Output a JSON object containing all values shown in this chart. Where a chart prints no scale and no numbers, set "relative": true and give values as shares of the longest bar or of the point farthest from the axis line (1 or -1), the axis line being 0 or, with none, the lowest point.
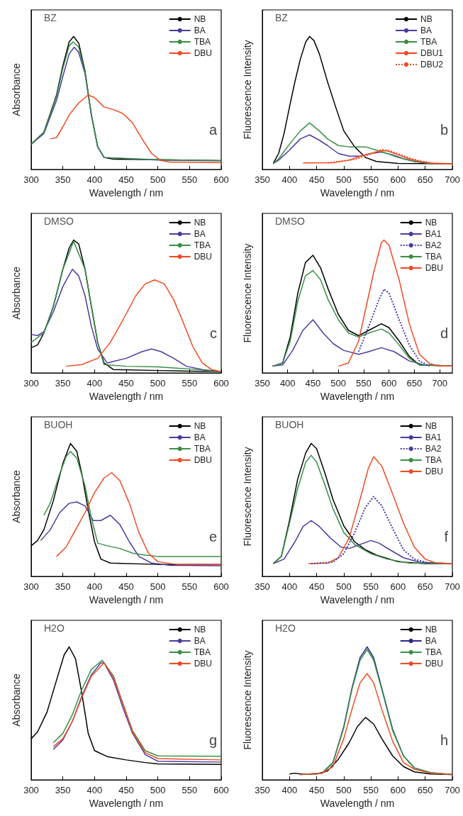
{
  "chart_data": [
    {
      "type": "line",
      "relative": true,
      "xlabel": "Wavelength / nm",
      "ylabel": "Absorbance",
      "xlim": [
        300,
        600
      ],
      "xticks": [
        300,
        350,
        400,
        450,
        500,
        550,
        600
      ],
      "grid": false,
      "legend": "top right",
      "marker": "none",
      "annotations": [
        "BZ",
        "a"
      ],
      "series": [
        {
          "name": "NB",
          "color": "#000000",
          "x": [
            300,
            320,
            340,
            350,
            360,
            367,
            375,
            385,
            395,
            405,
            415,
            430,
            500,
            600
          ],
          "values": [
            0.19,
            0.28,
            0.56,
            0.78,
            0.96,
            1.0,
            0.95,
            0.74,
            0.41,
            0.17,
            0.09,
            0.077,
            0.073,
            0.066
          ]
        },
        {
          "name": "BA",
          "color": "#4b3c9e",
          "x": [
            300,
            320,
            340,
            350,
            360,
            368,
            375,
            385,
            395,
            405,
            415,
            500,
            600
          ],
          "values": [
            0.19,
            0.27,
            0.52,
            0.7,
            0.87,
            0.92,
            0.88,
            0.72,
            0.41,
            0.17,
            0.09,
            0.07,
            0.065
          ]
        },
        {
          "name": "TBA",
          "color": "#3a8f45",
          "x": [
            300,
            320,
            340,
            350,
            360,
            366,
            375,
            385,
            395,
            405,
            415,
            500,
            600
          ],
          "values": [
            0.19,
            0.28,
            0.55,
            0.76,
            0.93,
            0.96,
            0.92,
            0.73,
            0.41,
            0.17,
            0.09,
            0.073,
            0.068
          ]
        },
        {
          "name": "DBU",
          "color": "#f04a22",
          "x": [
            330,
            340,
            350,
            360,
            375,
            390,
            400,
            415,
            430,
            445,
            460,
            475,
            490,
            505,
            520,
            600
          ],
          "values": [
            0.23,
            0.24,
            0.32,
            0.41,
            0.5,
            0.56,
            0.54,
            0.47,
            0.45,
            0.42,
            0.35,
            0.23,
            0.12,
            0.066,
            0.055,
            0.051
          ]
        }
      ]
    },
    {
      "type": "line",
      "relative": true,
      "xlabel": "Wavelength / nm",
      "ylabel": "Fluorescence Intensity",
      "xlim": [
        350,
        700
      ],
      "xticks": [
        350,
        400,
        450,
        500,
        550,
        600,
        650,
        700
      ],
      "grid": false,
      "legend": "top right",
      "marker": "none",
      "annotations": [
        "BZ",
        "b"
      ],
      "series": [
        {
          "name": "NB",
          "color": "#000000",
          "x": [
            370,
            380,
            390,
            400,
            410,
            420,
            430,
            437,
            445,
            455,
            470,
            485,
            500,
            520,
            540,
            560,
            600,
            700
          ],
          "values": [
            0.045,
            0.12,
            0.27,
            0.47,
            0.66,
            0.83,
            0.96,
            1.0,
            0.97,
            0.87,
            0.66,
            0.47,
            0.29,
            0.17,
            0.09,
            0.06,
            0.045,
            0.043
          ]
        },
        {
          "name": "BA",
          "color": "#4b3c9e",
          "x": [
            370,
            380,
            400,
            420,
            437,
            455,
            470,
            490,
            510,
            530,
            550,
            570,
            590,
            610,
            630,
            660,
            700
          ],
          "values": [
            0.045,
            0.07,
            0.145,
            0.23,
            0.26,
            0.22,
            0.18,
            0.12,
            0.1,
            0.1,
            0.12,
            0.13,
            0.11,
            0.08,
            0.06,
            0.045,
            0.043
          ]
        },
        {
          "name": "TBA",
          "color": "#3a8f45",
          "x": [
            370,
            380,
            400,
            420,
            437,
            455,
            470,
            490,
            510,
            540,
            560,
            580,
            600,
            630,
            660,
            700
          ],
          "values": [
            0.045,
            0.08,
            0.19,
            0.29,
            0.35,
            0.29,
            0.23,
            0.18,
            0.17,
            0.17,
            0.145,
            0.12,
            0.09,
            0.06,
            0.045,
            0.043
          ]
        },
        {
          "name": "DBU1",
          "color": "#f04a22",
          "x": [
            425,
            450,
            480,
            510,
            530,
            550,
            570,
            580,
            600,
            620,
            640,
            660,
            700
          ],
          "values": [
            0.049,
            0.049,
            0.05,
            0.07,
            0.1,
            0.12,
            0.14,
            0.14,
            0.11,
            0.08,
            0.06,
            0.047,
            0.043
          ]
        },
        {
          "name": "DBU2",
          "color": "#f04a22",
          "line_style": "dotted",
          "x": [
            470,
            520,
            545,
            570,
            585,
            605,
            625,
            645,
            670,
            700
          ],
          "values": [
            0.049,
            0.075,
            0.11,
            0.15,
            0.14,
            0.11,
            0.08,
            0.06,
            0.045,
            0.043
          ]
        }
      ]
    },
    {
      "type": "line",
      "relative": true,
      "xlabel": "Wavelength / nm",
      "ylabel": "Absorbance",
      "xlim": [
        300,
        600
      ],
      "xticks": [
        300,
        350,
        400,
        450,
        500,
        550,
        600
      ],
      "grid": false,
      "legend": "top right",
      "marker": "none",
      "annotations": [
        "DMSO",
        "c"
      ],
      "series": [
        {
          "name": "NB",
          "color": "#000000",
          "x": [
            300,
            310,
            320,
            335,
            350,
            360,
            367,
            375,
            385,
            395,
            405,
            415,
            430,
            500,
            600
          ],
          "values": [
            0.19,
            0.21,
            0.3,
            0.5,
            0.78,
            0.94,
            1.0,
            0.97,
            0.78,
            0.5,
            0.23,
            0.075,
            0.025,
            0.018,
            0.01
          ]
        },
        {
          "name": "BA",
          "color": "#4b3c9e",
          "x": [
            300,
            310,
            320,
            335,
            350,
            365,
            375,
            385,
            395,
            405,
            420,
            450,
            475,
            490,
            505,
            525,
            545,
            570,
            600
          ],
          "values": [
            0.29,
            0.28,
            0.31,
            0.46,
            0.65,
            0.78,
            0.73,
            0.58,
            0.35,
            0.18,
            0.075,
            0.11,
            0.16,
            0.18,
            0.16,
            0.11,
            0.05,
            0.025,
            0.01
          ]
        },
        {
          "name": "TBA",
          "color": "#3a8f45",
          "x": [
            300,
            320,
            335,
            350,
            367,
            385,
            395,
            405,
            415,
            450,
            500,
            550,
            600
          ],
          "values": [
            0.23,
            0.3,
            0.5,
            0.78,
            0.99,
            0.78,
            0.5,
            0.23,
            0.063,
            0.05,
            0.045,
            0.03,
            0.01
          ]
        },
        {
          "name": "DBU",
          "color": "#f04a22",
          "x": [
            355,
            380,
            405,
            425,
            445,
            465,
            480,
            495,
            510,
            525,
            540,
            555,
            570,
            585,
            600
          ],
          "values": [
            0.05,
            0.063,
            0.11,
            0.23,
            0.4,
            0.58,
            0.67,
            0.7,
            0.67,
            0.55,
            0.38,
            0.2,
            0.075,
            0.025,
            0.01
          ]
        }
      ]
    },
    {
      "type": "line",
      "relative": true,
      "xlabel": "Wavelength / nm",
      "ylabel": "Fluorescence Intensity",
      "xlim": [
        350,
        725
      ],
      "xticks": [
        350,
        400,
        450,
        500,
        550,
        600,
        650,
        700
      ],
      "grid": false,
      "legend": "top right",
      "marker": "none",
      "annotations": [
        "DMSO",
        "d"
      ],
      "series": [
        {
          "name": "NB",
          "color": "#000000",
          "x": [
            370,
            390,
            405,
            420,
            435,
            450,
            465,
            480,
            500,
            520,
            540,
            560,
            585,
            600,
            620,
            640,
            660,
            725
          ],
          "values": [
            0.05,
            0.075,
            0.27,
            0.6,
            0.83,
            0.885,
            0.79,
            0.63,
            0.44,
            0.32,
            0.28,
            0.32,
            0.37,
            0.34,
            0.24,
            0.125,
            0.06,
            0.052
          ]
        },
        {
          "name": "BA1",
          "color": "#4b3c9e",
          "x": [
            370,
            390,
            410,
            430,
            450,
            470,
            490,
            510,
            540,
            560,
            585,
            610,
            640,
            670,
            725
          ],
          "values": [
            0.052,
            0.06,
            0.17,
            0.32,
            0.4,
            0.3,
            0.22,
            0.17,
            0.14,
            0.16,
            0.19,
            0.16,
            0.09,
            0.06,
            0.052
          ]
        },
        {
          "name": "BA2",
          "color": "#4b3c9e",
          "line_style": "dotted",
          "x": [
            540,
            560,
            580,
            590,
            600,
            620,
            640,
            660,
            680
          ],
          "values": [
            0.16,
            0.35,
            0.55,
            0.63,
            0.6,
            0.4,
            0.21,
            0.09,
            0.052
          ]
        },
        {
          "name": "TBA",
          "color": "#3a8f45",
          "x": [
            370,
            390,
            405,
            420,
            435,
            450,
            465,
            480,
            500,
            520,
            540,
            560,
            585,
            600,
            620,
            640,
            660,
            725
          ],
          "values": [
            0.05,
            0.075,
            0.24,
            0.54,
            0.73,
            0.77,
            0.7,
            0.55,
            0.4,
            0.3,
            0.27,
            0.3,
            0.33,
            0.3,
            0.21,
            0.11,
            0.06,
            0.052
          ]
        },
        {
          "name": "DBU",
          "color": "#f04a22",
          "x": [
            500,
            520,
            540,
            555,
            570,
            585,
            590,
            600,
            620,
            640,
            660,
            680,
            700,
            725
          ],
          "values": [
            0.05,
            0.075,
            0.24,
            0.5,
            0.76,
            0.98,
            1.0,
            0.96,
            0.7,
            0.37,
            0.14,
            0.07,
            0.052,
            0.052
          ]
        }
      ]
    },
    {
      "type": "line",
      "relative": true,
      "xlabel": "Wavelength / nm",
      "ylabel": "Absorbance",
      "xlim": [
        300,
        600
      ],
      "xticks": [
        300,
        350,
        400,
        450,
        500,
        550,
        600
      ],
      "grid": false,
      "legend": "top right",
      "marker": "none",
      "annotations": [
        "BUOH",
        "e"
      ],
      "series": [
        {
          "name": "NB",
          "color": "#000000",
          "x": [
            300,
            310,
            320,
            335,
            350,
            362,
            372,
            380,
            390,
            400,
            410,
            425,
            500,
            600
          ],
          "values": [
            0.23,
            0.27,
            0.35,
            0.57,
            0.85,
            1.0,
            0.94,
            0.77,
            0.5,
            0.26,
            0.13,
            0.1,
            0.09,
            0.09
          ]
        },
        {
          "name": "BA",
          "color": "#4b3c9e",
          "x": [
            315,
            330,
            345,
            360,
            372,
            385,
            398,
            410,
            425,
            440,
            455,
            470,
            490,
            520,
            600
          ],
          "values": [
            0.27,
            0.35,
            0.48,
            0.55,
            0.56,
            0.53,
            0.42,
            0.42,
            0.46,
            0.39,
            0.26,
            0.15,
            0.1,
            0.083,
            0.08
          ]
        },
        {
          "name": "TBA",
          "color": "#3a8f45",
          "x": [
            320,
            330,
            345,
            355,
            362,
            372,
            385,
            395,
            405,
            420,
            440,
            460,
            480,
            500,
            600
          ],
          "values": [
            0.46,
            0.55,
            0.77,
            0.9,
            0.94,
            0.89,
            0.68,
            0.44,
            0.25,
            0.23,
            0.21,
            0.175,
            0.16,
            0.15,
            0.15
          ]
        },
        {
          "name": "DBU",
          "color": "#f04a22",
          "x": [
            340,
            355,
            370,
            385,
            400,
            415,
            427,
            440,
            455,
            470,
            485,
            500,
            530,
            600
          ],
          "values": [
            0.15,
            0.22,
            0.35,
            0.48,
            0.63,
            0.74,
            0.78,
            0.72,
            0.55,
            0.33,
            0.175,
            0.11,
            0.09,
            0.09
          ]
        }
      ]
    },
    {
      "type": "line",
      "relative": true,
      "xlabel": "Wavelength / nm",
      "ylabel": "Fluorescence Intensity",
      "xlim": [
        350,
        700
      ],
      "xticks": [
        350,
        400,
        450,
        500,
        550,
        600,
        650,
        700
      ],
      "grid": false,
      "legend": "top right",
      "marker": "none",
      "annotations": [
        "BUOH",
        "f"
      ],
      "series": [
        {
          "name": "NB",
          "color": "#000000",
          "x": [
            370,
            385,
            400,
            415,
            430,
            440,
            450,
            465,
            480,
            500,
            520,
            540,
            560,
            600,
            650,
            700
          ],
          "values": [
            0.096,
            0.15,
            0.42,
            0.73,
            0.93,
            1.0,
            0.96,
            0.78,
            0.58,
            0.38,
            0.26,
            0.2,
            0.16,
            0.11,
            0.096,
            0.096
          ]
        },
        {
          "name": "BA1",
          "color": "#4b3c9e",
          "x": [
            370,
            390,
            410,
            425,
            440,
            455,
            475,
            495,
            510,
            530,
            550,
            565,
            585,
            610,
            640,
            700
          ],
          "values": [
            0.096,
            0.13,
            0.26,
            0.375,
            0.42,
            0.375,
            0.29,
            0.22,
            0.21,
            0.24,
            0.27,
            0.25,
            0.2,
            0.14,
            0.107,
            0.096
          ]
        },
        {
          "name": "BA2",
          "color": "#4b3c9e",
          "line_style": "dotted",
          "x": [
            440,
            480,
            500,
            520,
            540,
            555,
            570,
            590,
            610,
            630,
            660
          ],
          "values": [
            0.096,
            0.107,
            0.17,
            0.33,
            0.52,
            0.6,
            0.53,
            0.36,
            0.2,
            0.13,
            0.096
          ]
        },
        {
          "name": "TBA",
          "color": "#3a8f45",
          "x": [
            370,
            385,
            400,
            415,
            430,
            440,
            450,
            465,
            480,
            500,
            520,
            550,
            580,
            620,
            700
          ],
          "values": [
            0.096,
            0.15,
            0.4,
            0.66,
            0.86,
            0.91,
            0.86,
            0.69,
            0.51,
            0.33,
            0.24,
            0.17,
            0.13,
            0.1,
            0.096
          ]
        },
        {
          "name": "DBU",
          "color": "#f04a22",
          "x": [
            435,
            470,
            490,
            510,
            530,
            545,
            555,
            570,
            590,
            610,
            630,
            650,
            670,
            700
          ],
          "values": [
            0.096,
            0.1,
            0.14,
            0.29,
            0.58,
            0.81,
            0.9,
            0.83,
            0.62,
            0.4,
            0.22,
            0.13,
            0.1,
            0.096
          ]
        }
      ]
    },
    {
      "type": "line",
      "relative": true,
      "xlabel": "Wavelength / nm",
      "ylabel": "Absorbance",
      "xlim": [
        300,
        600
      ],
      "xticks": [
        300,
        350,
        400,
        450,
        500,
        550,
        600
      ],
      "grid": false,
      "legend": "top right",
      "marker": "none",
      "annotations": [
        "H2O",
        "g"
      ],
      "series": [
        {
          "name": "NB",
          "color": "#000000",
          "x": [
            300,
            310,
            325,
            340,
            352,
            360,
            370,
            380,
            390,
            400,
            420,
            450,
            480,
            500,
            600
          ],
          "values": [
            0.31,
            0.36,
            0.51,
            0.75,
            0.94,
            1.0,
            0.91,
            0.65,
            0.35,
            0.22,
            0.175,
            0.15,
            0.13,
            0.12,
            0.116
          ]
        },
        {
          "name": "BA",
          "color": "#4b3c9e",
          "x": [
            335,
            350,
            365,
            380,
            395,
            410,
            415,
            430,
            445,
            460,
            480,
            500,
            600
          ],
          "values": [
            0.23,
            0.3,
            0.44,
            0.63,
            0.79,
            0.88,
            0.88,
            0.75,
            0.54,
            0.35,
            0.19,
            0.14,
            0.134
          ]
        },
        {
          "name": "TBA",
          "color": "#3a8f45",
          "x": [
            335,
            350,
            365,
            380,
            395,
            412,
            430,
            445,
            460,
            480,
            500,
            600
          ],
          "values": [
            0.28,
            0.35,
            0.49,
            0.68,
            0.83,
            0.9,
            0.78,
            0.57,
            0.37,
            0.22,
            0.18,
            0.177
          ]
        },
        {
          "name": "DBU",
          "color": "#f04a22",
          "x": [
            335,
            350,
            365,
            380,
            395,
            415,
            430,
            445,
            460,
            480,
            500,
            600
          ],
          "values": [
            0.25,
            0.31,
            0.44,
            0.62,
            0.78,
            0.88,
            0.77,
            0.57,
            0.36,
            0.205,
            0.16,
            0.15
          ]
        }
      ]
    },
    {
      "type": "line",
      "relative": true,
      "xlabel": "Wavelength / nm",
      "ylabel": "Fluorescence Intensity",
      "xlim": [
        350,
        700
      ],
      "xticks": [
        350,
        400,
        450,
        500,
        550,
        600,
        650,
        700
      ],
      "grid": false,
      "legend": "top right",
      "marker": "none",
      "annotations": [
        "H2O",
        "h"
      ],
      "series": [
        {
          "name": "NB",
          "color": "#000000",
          "x": [
            400,
            410,
            420,
            450,
            470,
            490,
            510,
            525,
            540,
            555,
            570,
            590,
            610,
            630,
            660,
            700
          ],
          "values": [
            0.044,
            0.05,
            0.044,
            0.044,
            0.067,
            0.155,
            0.28,
            0.4,
            0.47,
            0.42,
            0.31,
            0.18,
            0.1,
            0.06,
            0.044,
            0.04
          ]
        },
        {
          "name": "BA",
          "color": "#2a2a8f",
          "x": [
            420,
            460,
            480,
            500,
            515,
            530,
            543,
            555,
            570,
            590,
            610,
            630,
            660,
            700
          ],
          "values": [
            0.04,
            0.05,
            0.13,
            0.4,
            0.69,
            0.92,
            1.0,
            0.92,
            0.69,
            0.38,
            0.18,
            0.09,
            0.053,
            0.04
          ]
        },
        {
          "name": "TBA",
          "color": "#3a8f45",
          "x": [
            420,
            460,
            480,
            500,
            515,
            530,
            543,
            555,
            570,
            590,
            610,
            630,
            660,
            700
          ],
          "values": [
            0.04,
            0.05,
            0.13,
            0.39,
            0.68,
            0.9,
            0.98,
            0.9,
            0.68,
            0.37,
            0.18,
            0.09,
            0.053,
            0.04
          ]
        },
        {
          "name": "DBU",
          "color": "#f04a22",
          "x": [
            420,
            460,
            480,
            500,
            515,
            530,
            543,
            555,
            570,
            590,
            610,
            630,
            660,
            700
          ],
          "values": [
            0.04,
            0.05,
            0.1,
            0.31,
            0.53,
            0.73,
            0.8,
            0.73,
            0.53,
            0.29,
            0.13,
            0.08,
            0.05,
            0.04
          ]
        }
      ]
    }
  ]
}
